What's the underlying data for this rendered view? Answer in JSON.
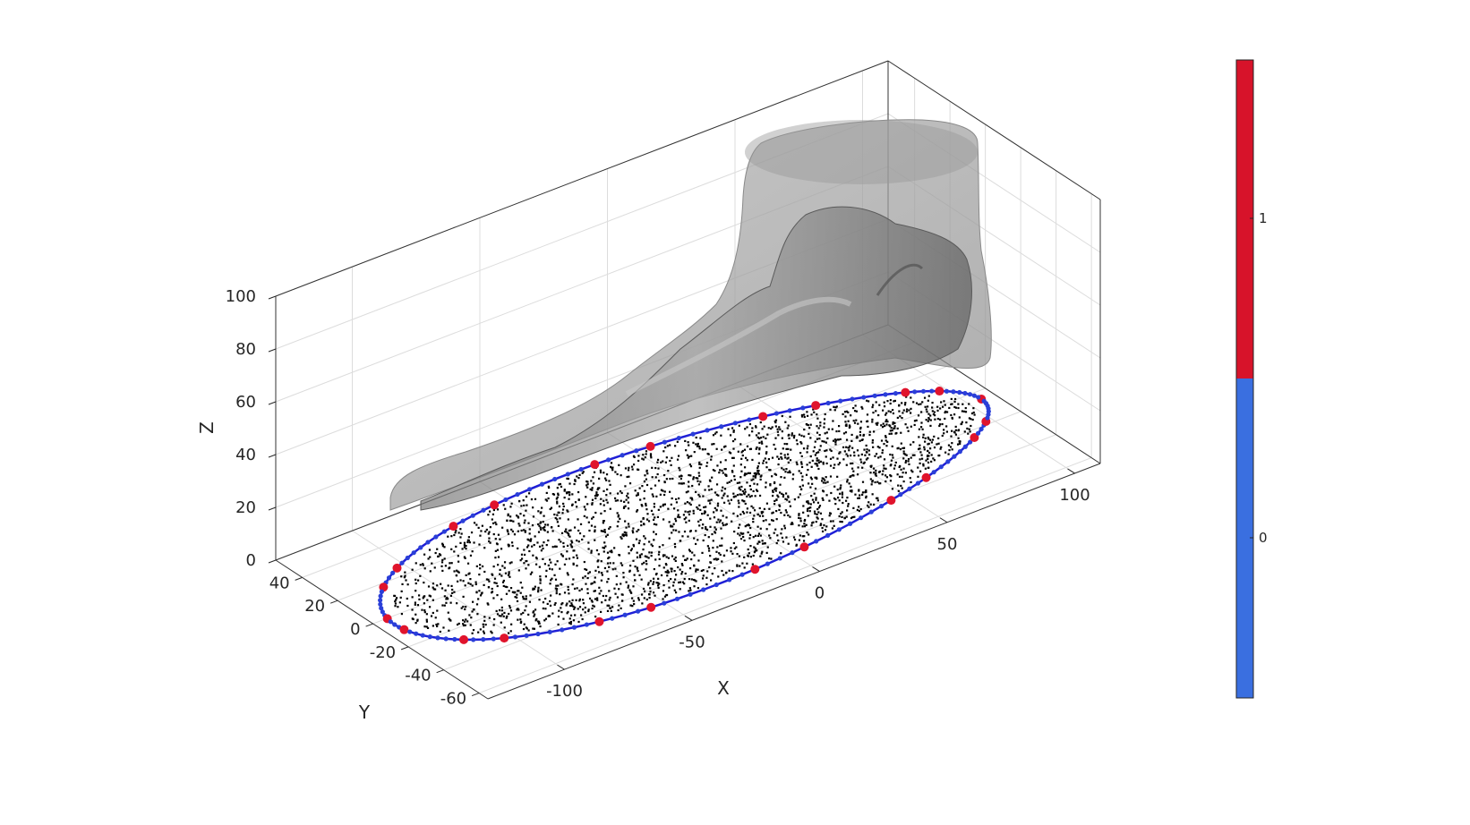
{
  "chart_data": {
    "type": "scatter3d",
    "title": "",
    "axes": {
      "x": {
        "label": "X",
        "ticks": [
          "-100",
          "-50",
          "0",
          "50",
          "100"
        ],
        "lim": [
          -130,
          110
        ]
      },
      "y": {
        "label": "Y",
        "ticks": [
          "-60",
          "-40",
          "-20",
          "0",
          "20",
          "40"
        ],
        "lim": [
          -65,
          55
        ]
      },
      "z": {
        "label": "Z",
        "ticks": [
          "0",
          "20",
          "40",
          "60",
          "80",
          "100"
        ],
        "lim": [
          0,
          100
        ]
      }
    },
    "grid": true,
    "box": true,
    "colorbar": {
      "ticks": [
        "0",
        "1"
      ],
      "colors": {
        "0": "#3a6fe0",
        "1": "#d7132a"
      },
      "lim": [
        -0.5,
        1.5
      ]
    },
    "colors": {
      "boundary_line": "#1f1fd6",
      "boundary_marker_0": "#2a3fd8",
      "boundary_marker_1": "#e0142c",
      "points": "#000000",
      "skin_surface": "#9a9a9a",
      "bone_surface": "#6e6e6e",
      "axes_box": "#333333",
      "grid": "#dcdcdc"
    },
    "series": [
      {
        "kind": "surface"
      },
      {
        "kind": "surface"
      },
      {
        "kind": "points"
      },
      {
        "kind": "boundary_curve"
      }
    ]
  }
}
